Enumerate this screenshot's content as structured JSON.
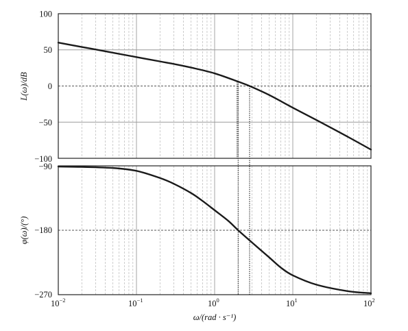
{
  "chart_data": [
    {
      "type": "line",
      "xlabel": "ω/(rad · s⁻¹)",
      "ylabel": "L(ω)/dB",
      "xscale": "log",
      "xlim": [
        0.01,
        100
      ],
      "ylim": [
        -100,
        100
      ],
      "yticks": [
        100,
        50,
        0,
        -50,
        -100
      ],
      "grid": "major solid, minor dashed",
      "series": [
        {
          "x": [
            0.01,
            0.02,
            0.03,
            0.05,
            0.1,
            0.2,
            0.3,
            0.5,
            1,
            2,
            2.8,
            5,
            10,
            20,
            50,
            100
          ],
          "y": [
            60,
            54,
            50.5,
            46,
            40,
            34,
            30.5,
            25.5,
            17.5,
            6,
            0,
            -12.5,
            -30,
            -47,
            -70,
            -88
          ]
        }
      ],
      "annotations": [
        "gain crossover ≈ 2.8 rad/s (L = 0 dB)"
      ]
    },
    {
      "type": "line",
      "xlabel": "ω/(rad · s⁻¹)",
      "ylabel": "φ(ω)/(°)",
      "xscale": "log",
      "xlim": [
        0.01,
        100
      ],
      "ylim": [
        -270,
        -90
      ],
      "yticks": [
        -90,
        -180,
        -270
      ],
      "grid": "major solid, minor dashed",
      "series": [
        {
          "x": [
            0.01,
            0.02,
            0.05,
            0.1,
            0.2,
            0.3,
            0.5,
            0.7,
            1,
            1.5,
            2,
            3,
            5,
            7,
            10,
            20,
            50,
            100
          ],
          "y": [
            -91,
            -91.5,
            -93,
            -97,
            -107,
            -115,
            -128,
            -139,
            -152,
            -167,
            -180,
            -197,
            -218,
            -232,
            -243,
            -256,
            -265,
            -268
          ]
        }
      ],
      "annotations": [
        "phase = -180° at ω ≈ 2 rad/s"
      ]
    }
  ],
  "axes": {
    "x_tick_labels": [
      {
        "base": "10",
        "exp": "−2"
      },
      {
        "base": "10",
        "exp": "−1"
      },
      {
        "base": "10",
        "exp": "0"
      },
      {
        "base": "10",
        "exp": "1"
      },
      {
        "base": "10",
        "exp": "2"
      }
    ],
    "x_title": "ω/(rad · s⁻¹)",
    "top_y_tick_labels": [
      "100",
      "50",
      "0",
      "−50",
      "−100"
    ],
    "bottom_y_tick_labels": [
      "−90",
      "−180",
      "−270"
    ],
    "top_y_title": "L(ω)/dB",
    "bottom_y_title": "φ(ω)/(°)"
  },
  "colors": {
    "curve": "#1a1a1a",
    "frame": "#222222",
    "major_grid": "#9a9a9a",
    "minor_grid": "#b8b8b8",
    "marker": "#222222"
  }
}
